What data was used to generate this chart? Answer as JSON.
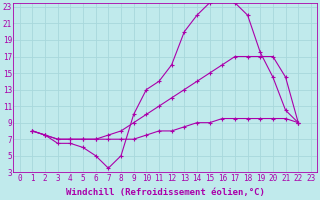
{
  "bg_color": "#c0eaec",
  "grid_color": "#a8d8dc",
  "line_color": "#aa00aa",
  "marker": "+",
  "xlabel": "Windchill (Refroidissement éolien,°C)",
  "xlim": [
    -0.5,
    23.5
  ],
  "ylim": [
    3,
    23.5
  ],
  "xticks": [
    0,
    1,
    2,
    3,
    4,
    5,
    6,
    7,
    8,
    9,
    10,
    11,
    12,
    13,
    14,
    15,
    16,
    17,
    18,
    19,
    20,
    21,
    22,
    23
  ],
  "yticks": [
    3,
    5,
    7,
    9,
    11,
    13,
    15,
    17,
    19,
    21,
    23
  ],
  "curve1_x": [
    1,
    2,
    3,
    4,
    5,
    6,
    7,
    8,
    9,
    10,
    11,
    12,
    13,
    14,
    15,
    16,
    17,
    18,
    19,
    20,
    21,
    22
  ],
  "curve1_y": [
    8,
    7.5,
    6.5,
    6.5,
    6.0,
    5.0,
    3.5,
    5.0,
    10.0,
    13.0,
    14.0,
    16.0,
    20.0,
    22.0,
    23.5,
    24.0,
    23.5,
    22.0,
    17.5,
    14.5,
    10.5,
    9.0
  ],
  "curve2_x": [
    1,
    2,
    3,
    4,
    5,
    6,
    7,
    8,
    9,
    10,
    11,
    12,
    13,
    14,
    15,
    16,
    17,
    18,
    19,
    20,
    21,
    22
  ],
  "curve2_y": [
    8.0,
    7.5,
    7.0,
    7.0,
    7.0,
    7.0,
    7.5,
    8.0,
    9.0,
    10.0,
    11.0,
    12.0,
    13.0,
    14.0,
    15.0,
    16.0,
    17.0,
    17.0,
    17.0,
    17.0,
    14.5,
    9.0
  ],
  "curve3_x": [
    1,
    2,
    3,
    4,
    5,
    6,
    7,
    8,
    9,
    10,
    11,
    12,
    13,
    14,
    15,
    16,
    17,
    18,
    19,
    20,
    21,
    22
  ],
  "curve3_y": [
    8.0,
    7.5,
    7.0,
    7.0,
    7.0,
    7.0,
    7.0,
    7.0,
    7.0,
    7.5,
    8.0,
    8.0,
    8.5,
    9.0,
    9.0,
    9.5,
    9.5,
    9.5,
    9.5,
    9.5,
    9.5,
    9.0
  ],
  "font_family": "monospace",
  "tick_fontsize": 5.5,
  "label_fontsize": 6.5
}
